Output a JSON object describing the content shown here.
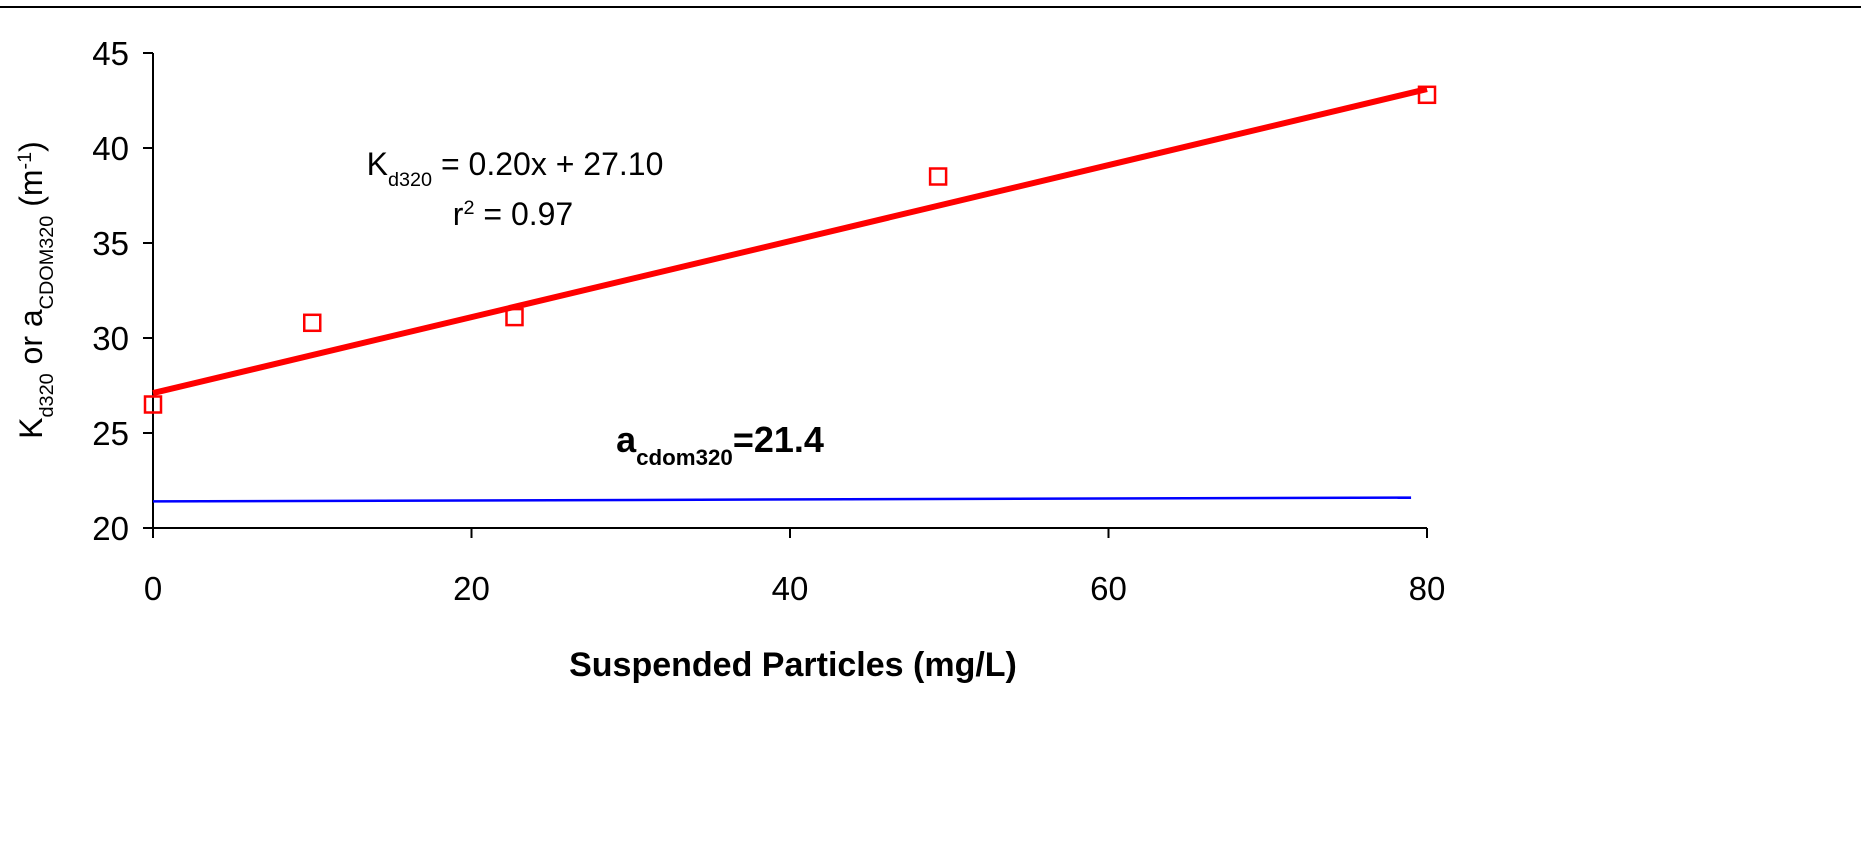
{
  "chart_data": {
    "type": "scatter",
    "xlabel": "Suspended Particles (mg/L)",
    "ylabel": [
      {
        "text": "K"
      },
      {
        "text": "d320",
        "shift": "sub"
      },
      {
        "text": " or a"
      },
      {
        "text": "CDOM320",
        "shift": "sub"
      },
      {
        "text": " (m"
      },
      {
        "text": "-1",
        "shift": "super"
      },
      {
        "text": ")"
      }
    ],
    "xlim": [
      0,
      80
    ],
    "ylim": [
      20,
      45
    ],
    "xticks": [
      0,
      20,
      40,
      60,
      80
    ],
    "yticks": [
      20,
      25,
      30,
      35,
      40,
      45
    ],
    "series": [
      {
        "type": "scatter",
        "marker": "square",
        "color": "#ff0000",
        "x": [
          0,
          10,
          22.7,
          49.3,
          80
        ],
        "values": [
          26.5,
          30.8,
          31.1,
          38.5,
          42.8
        ]
      },
      {
        "type": "line",
        "color": "#ff0000",
        "x": [
          0,
          80
        ],
        "values": [
          27.1,
          43.1
        ]
      },
      {
        "type": "line",
        "color": "#0000ff",
        "x": [
          0,
          79
        ],
        "values": [
          21.4,
          21.6
        ]
      }
    ],
    "annotations": [
      {
        "color": "#ff0000",
        "parts": [
          {
            "text": "K"
          },
          {
            "text": "d320",
            "shift": "sub"
          },
          {
            "text": " = 0.20x + 27.10"
          }
        ]
      },
      {
        "color": "#ff0000",
        "parts": [
          {
            "text": "r"
          },
          {
            "text": "2",
            "shift": "super"
          },
          {
            "text": " = 0.97"
          }
        ]
      },
      {
        "color": "#0000ff",
        "bold": true,
        "parts": [
          {
            "text": "a"
          },
          {
            "text": "cdom320",
            "shift": "sub"
          },
          {
            "text": "=21.4"
          }
        ]
      }
    ]
  }
}
